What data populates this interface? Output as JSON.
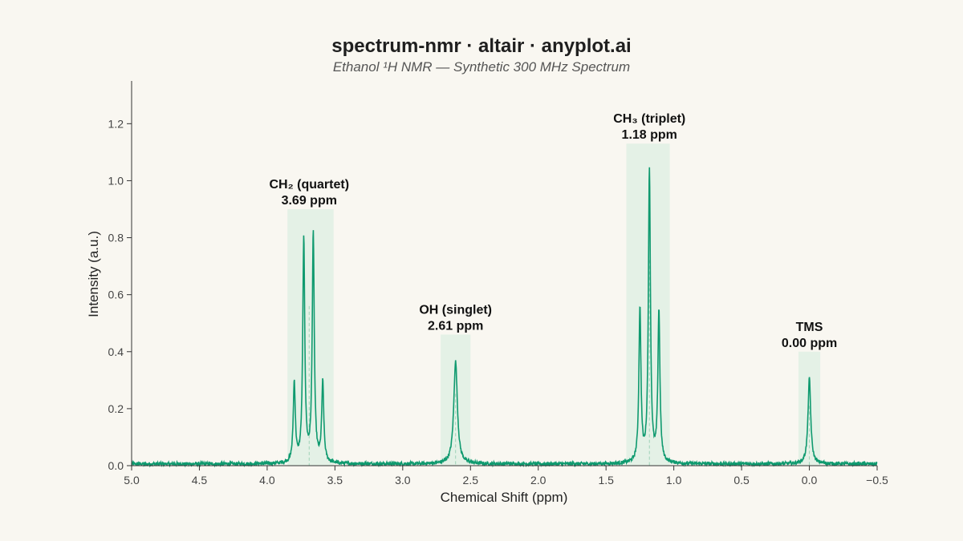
{
  "title": "spectrum-nmr · altair · anyplot.ai",
  "subtitle": "Ethanol ¹H NMR — Synthetic 300 MHz Spectrum",
  "colors": {
    "background": "#f9f7f1",
    "line": "#0f9a6f",
    "region": "#dcefe2",
    "axis": "#333333"
  },
  "chart_data": {
    "type": "line",
    "title": "spectrum-nmr · altair · anyplot.ai",
    "subtitle": "Ethanol ¹H NMR — Synthetic 300 MHz Spectrum",
    "xlabel": "Chemical Shift (ppm)",
    "ylabel": "Intensity (a.u.)",
    "x_reversed": true,
    "xlim": [
      5.0,
      -0.5
    ],
    "ylim": [
      0.0,
      1.35
    ],
    "x_ticks": [
      5.0,
      4.5,
      4.0,
      3.5,
      3.0,
      2.5,
      2.0,
      1.5,
      1.0,
      0.5,
      0.0,
      -0.5
    ],
    "x_tick_labels": [
      "5.0",
      "4.5",
      "4.0",
      "3.5",
      "3.0",
      "2.5",
      "2.0",
      "1.5",
      "1.0",
      "0.5",
      "0.0",
      "−0.5"
    ],
    "y_ticks": [
      0.0,
      0.2,
      0.4,
      0.6,
      0.8,
      1.0,
      1.2
    ],
    "y_tick_labels": [
      "0.0",
      "0.2",
      "0.4",
      "0.6",
      "0.8",
      "1.0",
      "1.2"
    ],
    "grid": false,
    "noise_level": 0.012,
    "peaks": [
      {
        "name": "CH₂ (quartet)",
        "shift_label": "3.69 ppm",
        "center": 3.69,
        "region": [
          3.85,
          3.51
        ],
        "lines": [
          {
            "x": 3.8,
            "y": 0.28
          },
          {
            "x": 3.73,
            "y": 0.78
          },
          {
            "x": 3.66,
            "y": 0.8
          },
          {
            "x": 3.59,
            "y": 0.28
          }
        ],
        "width": 0.009
      },
      {
        "name": "OH (singlet)",
        "shift_label": "2.61 ppm",
        "center": 2.61,
        "region": [
          2.72,
          2.5
        ],
        "lines": [
          {
            "x": 2.61,
            "y": 0.36
          }
        ],
        "width": 0.016
      },
      {
        "name": "CH₃ (triplet)",
        "shift_label": "1.18 ppm",
        "center": 1.18,
        "region": [
          1.35,
          1.03
        ],
        "lines": [
          {
            "x": 1.25,
            "y": 0.54
          },
          {
            "x": 1.18,
            "y": 1.03
          },
          {
            "x": 1.11,
            "y": 0.53
          }
        ],
        "width": 0.009
      },
      {
        "name": "TMS",
        "shift_label": "0.00 ppm",
        "center": 0.0,
        "region": [
          0.08,
          -0.08
        ],
        "lines": [
          {
            "x": 0.0,
            "y": 0.3
          }
        ],
        "width": 0.012
      }
    ]
  }
}
